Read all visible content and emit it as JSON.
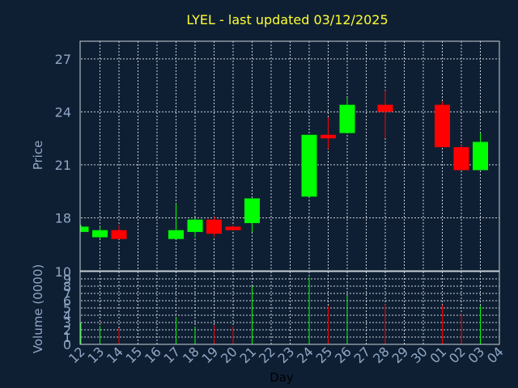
{
  "chart_data": {
    "type": "candlestick",
    "title": "LYEL - last updated 03/12/2025",
    "ylabel": "Price",
    "volume_ylabel": "Volume (0000)",
    "xlabel": "Day",
    "ylim": [
      15,
      28
    ],
    "yticks": [
      27,
      24,
      21,
      18
    ],
    "ylim_volume": [
      0,
      10
    ],
    "yticks_volume": [
      10,
      9,
      8,
      7,
      6,
      5,
      4,
      3,
      2,
      1,
      0
    ],
    "x_ticks": [
      "12",
      "13",
      "14",
      "15",
      "16",
      "17",
      "18",
      "19",
      "20",
      "21",
      "22",
      "23",
      "24",
      "25",
      "26",
      "27",
      "28",
      "29",
      "30",
      "01",
      "02",
      "03",
      "04"
    ],
    "colors": {
      "up": "#00ff00",
      "down": "#ff0000",
      "title": "#ffff33",
      "tick": "#8fa7c6",
      "grid": "#c8d0d8",
      "background": "#0f1f33"
    },
    "series": [
      {
        "day": "12",
        "open": 17.2,
        "close": 17.5,
        "high": 17.6,
        "low": 17.2,
        "volume": 3.0
      },
      {
        "day": "13",
        "open": 16.9,
        "close": 17.3,
        "high": 17.5,
        "low": 16.8,
        "volume": 2.5
      },
      {
        "day": "14",
        "open": 17.3,
        "close": 16.8,
        "high": 17.6,
        "low": 16.8,
        "volume": 2.2
      },
      {
        "day": "17",
        "open": 16.8,
        "close": 17.3,
        "high": 18.8,
        "low": 16.8,
        "volume": 3.7
      },
      {
        "day": "18",
        "open": 17.2,
        "close": 17.9,
        "high": 18.0,
        "low": 16.9,
        "volume": 2.4
      },
      {
        "day": "19",
        "open": 17.9,
        "close": 17.1,
        "high": 18.1,
        "low": 16.9,
        "volume": 2.6
      },
      {
        "day": "20",
        "open": 17.5,
        "close": 17.3,
        "high": 17.6,
        "low": 17.3,
        "volume": 2.5
      },
      {
        "day": "21",
        "open": 17.7,
        "close": 19.1,
        "high": 19.1,
        "low": 17.2,
        "volume": 8.0
      },
      {
        "day": "24",
        "open": 19.2,
        "close": 22.7,
        "high": 22.7,
        "low": 19.2,
        "volume": 9.2
      },
      {
        "day": "25",
        "open": 22.7,
        "close": 22.5,
        "high": 23.7,
        "low": 21.9,
        "volume": 5.3
      },
      {
        "day": "26",
        "open": 22.8,
        "close": 24.4,
        "high": 24.8,
        "low": 22.8,
        "volume": 6.7
      },
      {
        "day": "28",
        "open": 24.4,
        "close": 24.0,
        "high": 25.2,
        "low": 22.5,
        "volume": 5.5
      },
      {
        "day": "01",
        "open": 24.4,
        "close": 22.0,
        "high": 24.6,
        "low": 22.0,
        "volume": 5.4
      },
      {
        "day": "02",
        "open": 22.0,
        "close": 20.7,
        "high": 22.1,
        "low": 20.7,
        "volume": 4.2
      },
      {
        "day": "03",
        "open": 20.7,
        "close": 22.3,
        "high": 22.8,
        "low": 20.7,
        "volume": 5.3
      }
    ]
  }
}
